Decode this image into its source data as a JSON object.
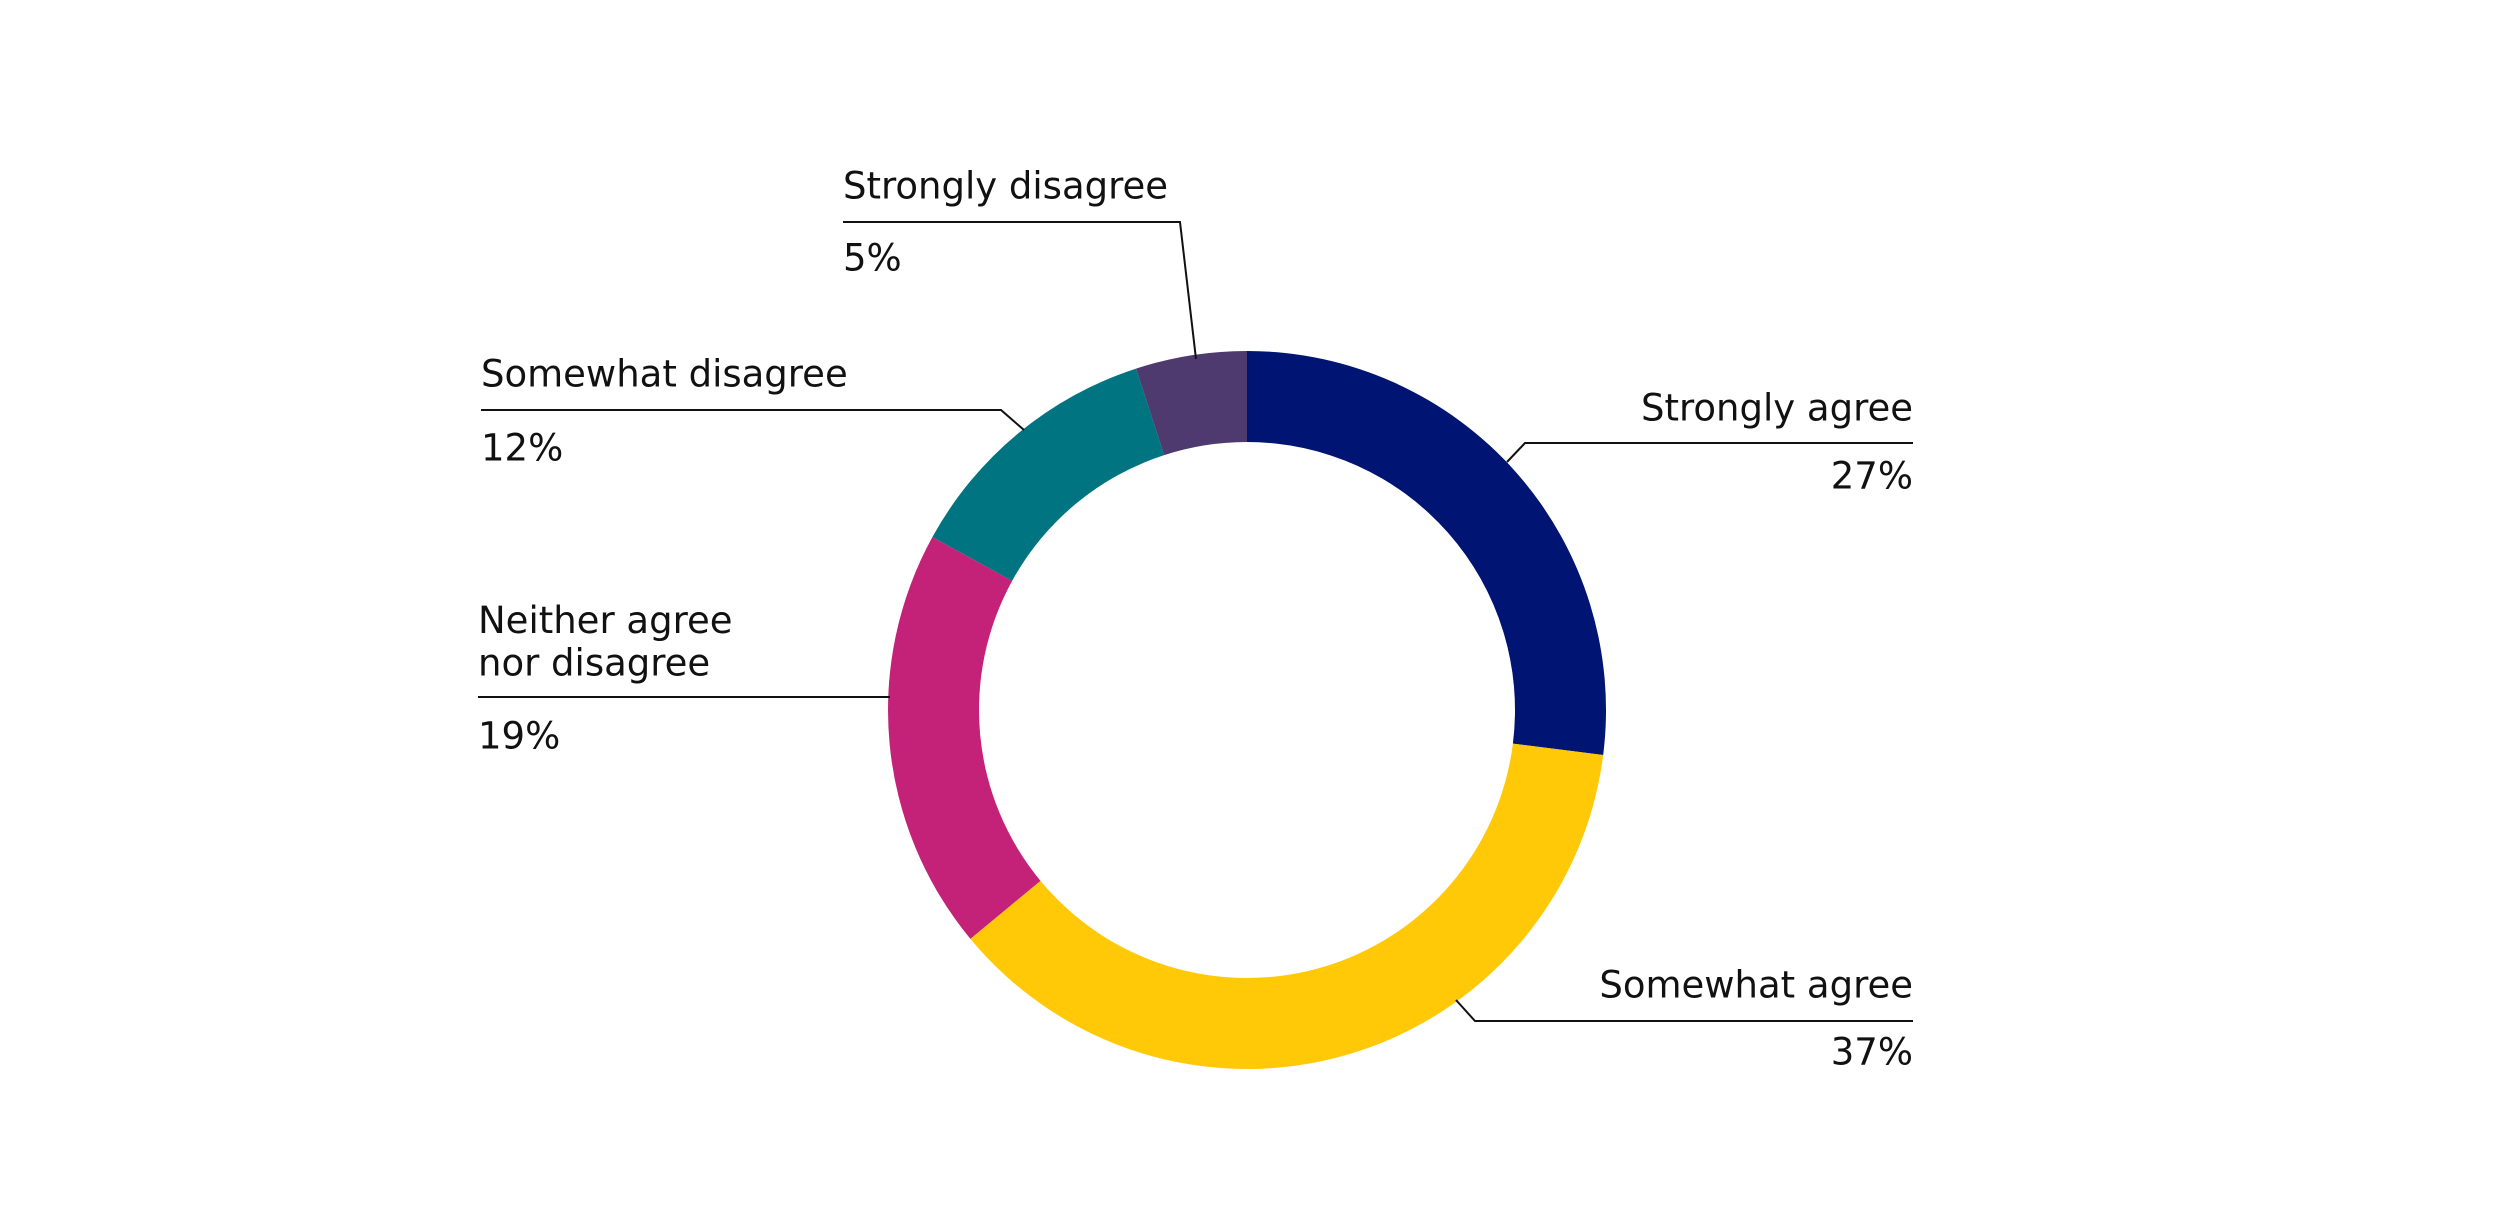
{
  "chart_data": {
    "type": "donut",
    "categories": [
      "Strongly agree",
      "Somewhat agree",
      "Neither agree\nnor disagree",
      "Somewhat disagree",
      "Strongly disagree"
    ],
    "values": [
      27,
      37,
      19,
      12,
      5
    ],
    "value_labels": [
      "27%",
      "37%",
      "19%",
      "12%",
      "5%"
    ],
    "colors": [
      "#001473",
      "#ffc907",
      "#c42278",
      "#007481",
      "#4e3a6e"
    ]
  }
}
